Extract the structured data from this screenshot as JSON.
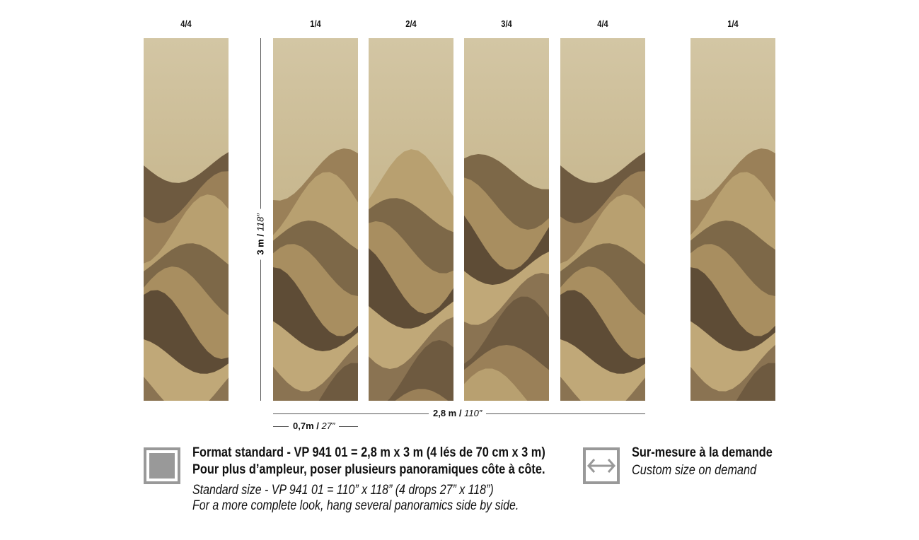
{
  "panels": [
    {
      "label": "4/4"
    },
    {
      "label": "1/4"
    },
    {
      "label": "2/4"
    },
    {
      "label": "3/4"
    },
    {
      "label": "4/4"
    },
    {
      "label": "1/4"
    }
  ],
  "dimensions": {
    "height_m": "3 m /",
    "height_in": "118”",
    "width_m": "2,8 m /",
    "width_in": "110”",
    "drop_m": "0,7m /",
    "drop_in": "27”"
  },
  "standard": {
    "icon": "filled-square-icon",
    "line1": "Format standard - VP 941 01 = 2,8 m x 3 m (4 lés de 70 cm x 3 m)",
    "line2": "Pour plus d’ampleur, poser plusieurs panoramiques côte à côte.",
    "line3": "Standard size - VP 941 01 = 110” x 118” (4 drops 27” x 118”)",
    "line4": "For a more complete look, hang several panoramics side by side."
  },
  "custom": {
    "icon": "double-arrow-icon",
    "line1": "Sur-mesure à la demande",
    "line2": "Custom size on demand"
  },
  "colors": {
    "gray": "#999999",
    "fill": "#999999",
    "brown_dark": "#5e4c36",
    "brown_mid": "#8a7352",
    "tan": "#b49a68"
  }
}
